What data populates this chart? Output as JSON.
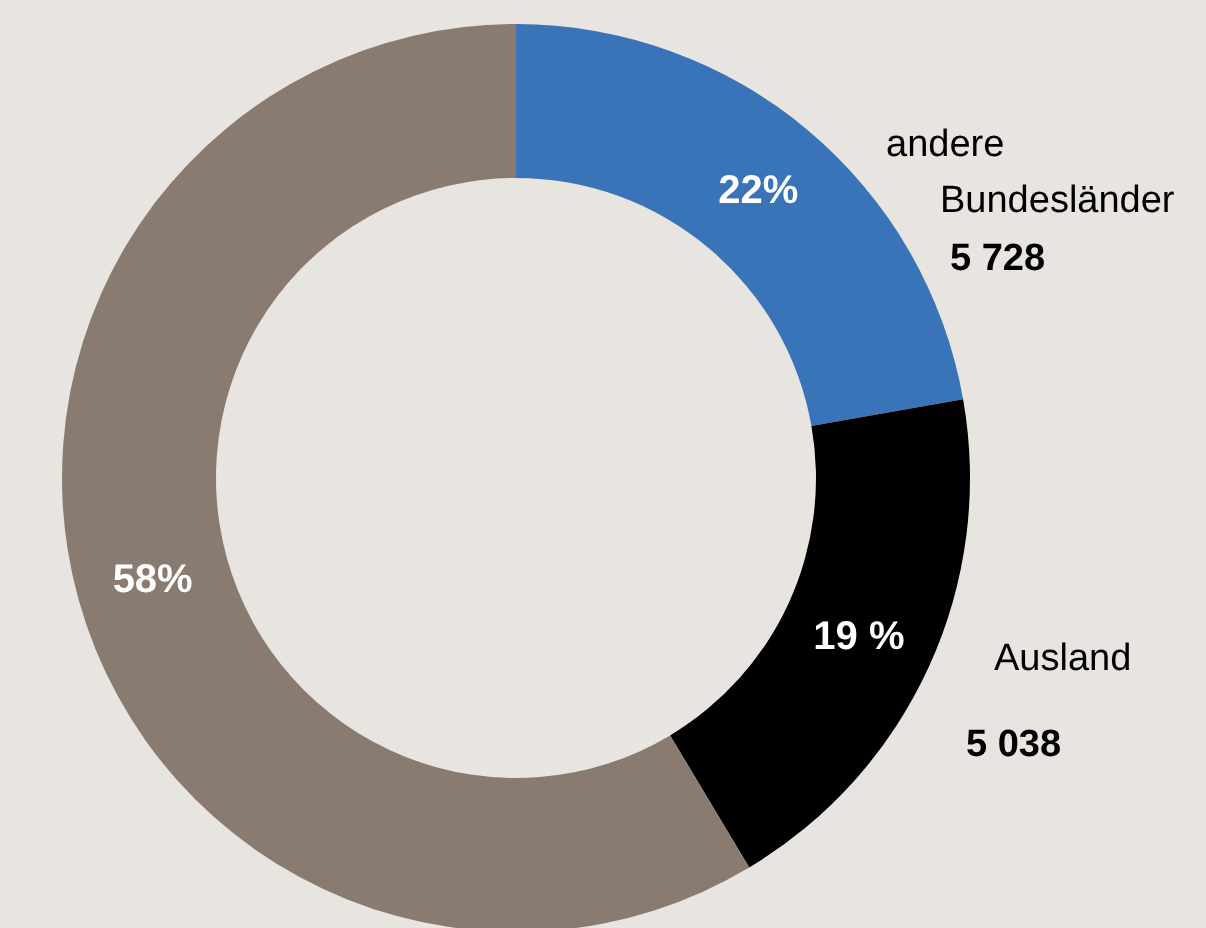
{
  "chart_data": {
    "type": "donut",
    "categories": [
      "andere Bundesländer",
      "Ausland",
      null
    ],
    "values": [
      22,
      19,
      58
    ],
    "colors": [
      "#3a74b8",
      "#000000",
      "#8a7b70"
    ],
    "value_labels": [
      "22%",
      "19 %",
      "58%"
    ],
    "annotations": [
      "5 728",
      "5 038"
    ]
  }
}
